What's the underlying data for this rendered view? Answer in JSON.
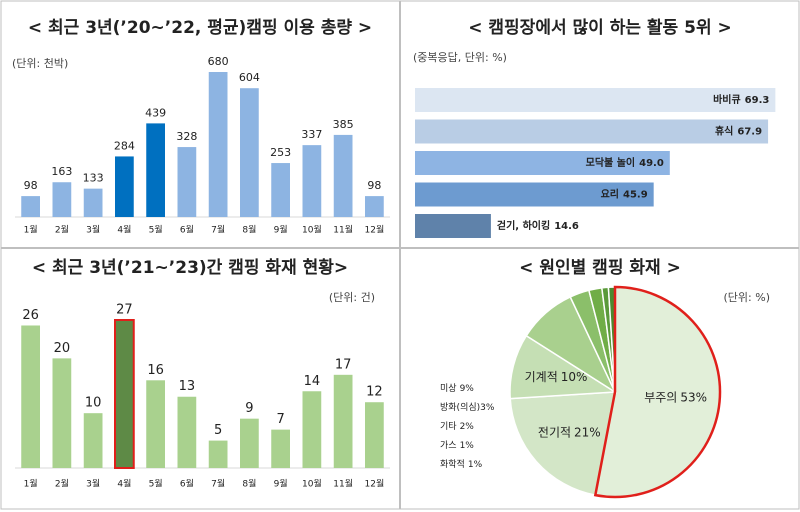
{
  "chart_data": [
    {
      "type": "bar",
      "title": "< 최근 3년(’20~’22, 평균)캠핑 이용 총량 >",
      "subtitle": "(단위: 천박)",
      "categories": [
        "1월",
        "2월",
        "3월",
        "4월",
        "5월",
        "6월",
        "7월",
        "8월",
        "9월",
        "10월",
        "11월",
        "12월"
      ],
      "values": [
        98,
        163,
        133,
        284,
        439,
        328,
        680,
        604,
        253,
        337,
        385,
        98
      ],
      "colors": [
        "#8db4e2",
        "#8db4e2",
        "#8db4e2",
        "#0070c0",
        "#0070c0",
        "#8db4e2",
        "#8db4e2",
        "#8db4e2",
        "#8db4e2",
        "#8db4e2",
        "#8db4e2",
        "#8db4e2"
      ]
    },
    {
      "type": "hbar",
      "title": "< 캠핑장에서 많이 하는 활동 5위 >",
      "subtitle": "(중복응답, 단위: %)",
      "categories": [
        "바비큐",
        "휴식",
        "모닥불 놀이",
        "요리",
        "걷기, 하이킹"
      ],
      "values": [
        69.3,
        67.9,
        49.0,
        45.9,
        14.6
      ],
      "value_labels": [
        "69.3",
        "67.9",
        "49.0",
        "45.9",
        "14.6"
      ],
      "colors": [
        "#dce6f2",
        "#b9cde5",
        "#8eb4e3",
        "#6d9bd0",
        "#5f82aa"
      ]
    },
    {
      "type": "bar",
      "title": "< 최근 3년(’21~’23)간 캠핑 화재 현황>",
      "subtitle": "(단위: 건)",
      "categories": [
        "1월",
        "2월",
        "3월",
        "4월",
        "5월",
        "6월",
        "7월",
        "8월",
        "9월",
        "10월",
        "11월",
        "12월"
      ],
      "values": [
        26,
        20,
        10,
        27,
        16,
        13,
        5,
        9,
        7,
        14,
        17,
        12
      ],
      "colors": [
        "#a9d18e",
        "#a9d18e",
        "#a9d18e",
        "#5e8a46",
        "#a9d18e",
        "#a9d18e",
        "#a9d18e",
        "#a9d18e",
        "#a9d18e",
        "#a9d18e",
        "#a9d18e",
        "#a9d18e"
      ],
      "edgecolors": [
        null,
        null,
        null,
        "#e0201b",
        null,
        null,
        null,
        null,
        null,
        null,
        null,
        null
      ]
    },
    {
      "type": "pie",
      "title": "< 원인별 캠핑 화재 >",
      "subtitle": "(단위: %)",
      "categories": [
        "부주의",
        "전기적",
        "기계적",
        "미상",
        "방화(의심)",
        "기타",
        "가스",
        "화학적"
      ],
      "values": [
        53,
        21,
        10,
        9,
        3,
        2,
        1,
        1
      ],
      "value_labels": [
        "53%",
        "21%",
        "10%",
        "9%",
        "3%",
        "2%",
        "1%",
        "1%"
      ],
      "colors": [
        "#e2efd9",
        "#d3e6c7",
        "#c5dfb4",
        "#a9d08e",
        "#8bbf6a",
        "#70ad47",
        "#5a9a3a",
        "#4b8a2e"
      ],
      "edgecolors": [
        "#e0201b",
        null,
        null,
        null,
        null,
        null,
        null,
        null
      ]
    }
  ]
}
